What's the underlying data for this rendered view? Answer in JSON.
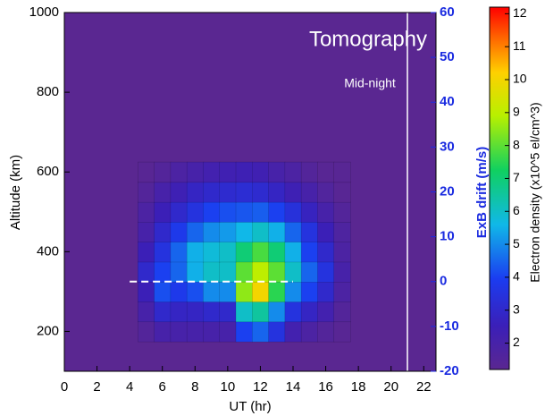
{
  "chart_data": {
    "type": "contour",
    "title": "Tomography",
    "annotation": "Mid-night",
    "xlabel": "UT (hr)",
    "ylabel": "Altitude (km)",
    "y2label": "ExB drift (m/s)",
    "colorbar_label": "Electron density (x10^5 el/cm^3)",
    "xlim": [
      0,
      22.75
    ],
    "xticks": [
      0,
      2,
      4,
      6,
      8,
      10,
      12,
      14,
      16,
      18,
      20,
      22
    ],
    "ylim": [
      100,
      1000
    ],
    "yticks": [
      200,
      400,
      600,
      800,
      1000
    ],
    "y2lim": [
      -20,
      60
    ],
    "y2ticks": [
      -20,
      -10,
      0,
      10,
      20,
      30,
      40,
      50,
      60
    ],
    "clim": [
      1.2,
      12.2
    ],
    "cticks": [
      2,
      3,
      4,
      5,
      6,
      7,
      8,
      9,
      10,
      11,
      12
    ],
    "x": [
      5,
      6,
      7,
      8,
      9,
      10,
      11,
      12,
      13,
      14,
      15,
      16,
      17
    ],
    "y": [
      200,
      250,
      300,
      350,
      400,
      450,
      500,
      550,
      600
    ],
    "z": [
      [
        1.5,
        2,
        2,
        2,
        2,
        2,
        4,
        4.5,
        3.5,
        2.2,
        1.8,
        1.5,
        1.3
      ],
      [
        2,
        3,
        2.8,
        2.8,
        3,
        3,
        6,
        6.5,
        5,
        3.5,
        2.8,
        2.2,
        1.5
      ],
      [
        2.5,
        4.2,
        3.8,
        4.2,
        5,
        5,
        8.5,
        10,
        7.5,
        5,
        4,
        3,
        1.8
      ],
      [
        3,
        4,
        4.5,
        5.5,
        6,
        6,
        8,
        9,
        8,
        6,
        4.5,
        3.5,
        2
      ],
      [
        2.5,
        3.5,
        4.5,
        5.5,
        5.8,
        6,
        7,
        7.8,
        7,
        5.5,
        4,
        3,
        1.8
      ],
      [
        2,
        3,
        3.8,
        4.5,
        5,
        5.2,
        5.6,
        6,
        5.5,
        4.5,
        3.5,
        2.5,
        1.7
      ],
      [
        1.8,
        2.5,
        3,
        3.5,
        4,
        4.2,
        4.3,
        4.4,
        4,
        3.4,
        2.7,
        2,
        1.5
      ],
      [
        1.5,
        2,
        2.4,
        2.8,
        3,
        3.1,
        3.2,
        3.1,
        2.8,
        2.4,
        2,
        1.6,
        1.3
      ],
      [
        1.3,
        1.5,
        1.8,
        2,
        2.2,
        2.3,
        2.4,
        2.3,
        2,
        1.8,
        1.5,
        1.3,
        1.3
      ]
    ],
    "drift": {
      "x": [
        4,
        14
      ],
      "values": [
        0,
        0
      ]
    },
    "midnight_x": 21
  }
}
